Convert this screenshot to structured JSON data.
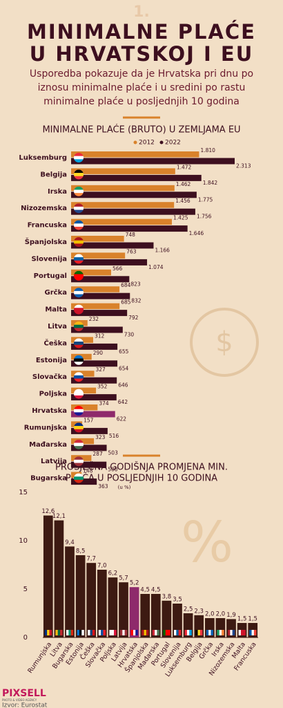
{
  "header": {
    "number": "1.",
    "title": [
      "MINIMALNE PLAĆE",
      "U HRVATSKOJ I EU"
    ],
    "subtitle": [
      "Usporedba pokazuje da je Hrvatska pri dnu po",
      "iznosu minimalne plaće i u sredini po rastu",
      "minimalne plaće u posljednjih 10 godina"
    ]
  },
  "chart_data": [
    {
      "type": "hbar",
      "title": "MINIMALNE PLAĆE (BRUTO) U ZEMLJAMA EU",
      "categories": [
        "Luksemburg",
        "Belgija",
        "Irska",
        "Nizozemska",
        "Francuska",
        "Španjolska",
        "Slovenija",
        "Portugal",
        "Grčka",
        "Malta",
        "Litva",
        "Češka",
        "Estonija",
        "Slovačka",
        "Poljska",
        "Hrvatska",
        "Rumunjska",
        "Mađarska",
        "Latvija",
        "Bugarska"
      ],
      "series": [
        {
          "name": "2012",
          "color": "#d9822b",
          "values": [
            1810,
            1472,
            1462,
            1456,
            1425,
            748,
            763,
            566,
            684,
            685,
            232,
            312,
            290,
            327,
            352,
            374,
            157,
            323,
            287,
            148
          ],
          "value_labels": [
            "1.810",
            "1.472",
            "1.462",
            "1.456",
            "1.425",
            "748",
            "763",
            "566",
            "684",
            "685",
            "232",
            "312",
            "290",
            "327",
            "352",
            "374",
            "157",
            "323",
            "287",
            "148"
          ]
        },
        {
          "name": "2022",
          "color": "#3d0f1f",
          "values": [
            2313,
            1842,
            1775,
            1756,
            1646,
            1166,
            1074,
            823,
            832,
            792,
            730,
            655,
            654,
            646,
            642,
            622,
            516,
            503,
            500,
            363
          ],
          "value_labels": [
            "2.313",
            "1.842",
            "1.775",
            "1.756",
            "1.646",
            "1.166",
            "1.074",
            "823",
            "832",
            "792",
            "730",
            "655",
            "654",
            "646",
            "642",
            "622",
            "516",
            "503",
            "500",
            "363"
          ]
        }
      ],
      "highlight_index": 15,
      "highlight_color": "#8e2a6b"
    },
    {
      "type": "bar",
      "title": [
        "PROSJEČNA GODIŠNJA PROMJENA MIN.",
        "PLAĆA U POSLJEDNJIH 10 GODINA"
      ],
      "unit": "(u %)",
      "categories": [
        "Rumunjska",
        "Litva",
        "Bugarska",
        "Estonija",
        "Češka",
        "Slovačka",
        "Poljska",
        "Latvija",
        "Hrvatska",
        "Španjolska",
        "Mađarska",
        "Portugal",
        "Slovenija",
        "Luksemburg",
        "Belgija",
        "Grčka",
        "Irska",
        "Nizozemska",
        "Malta",
        "Francuska"
      ],
      "values": [
        12.6,
        12.1,
        9.4,
        8.5,
        7.7,
        7.0,
        6.2,
        5.7,
        5.2,
        4.5,
        4.5,
        3.8,
        3.5,
        2.5,
        2.3,
        2.0,
        2.0,
        1.9,
        1.5,
        1.5
      ],
      "value_labels": [
        "12,6",
        "12,1",
        "9,4",
        "8,5",
        "7,7",
        "7,0",
        "6,2",
        "5,7",
        "5,2",
        "4,5",
        "4,5",
        "3,8",
        "3,5",
        "2,5",
        "2,3",
        "2,0",
        "2,0",
        "1,9",
        "1,5",
        "1,5"
      ],
      "color": "#3d1a12",
      "highlight_index": 8,
      "highlight_color": "#8e2a6b",
      "ylim": [
        0,
        15
      ],
      "yticks": [
        0,
        5,
        10,
        15
      ]
    }
  ],
  "footer": {
    "brand": "PIXSELL",
    "tagline": "PHOTO & VIDEO AGENCY",
    "source": "Izvor: Eurostat"
  }
}
